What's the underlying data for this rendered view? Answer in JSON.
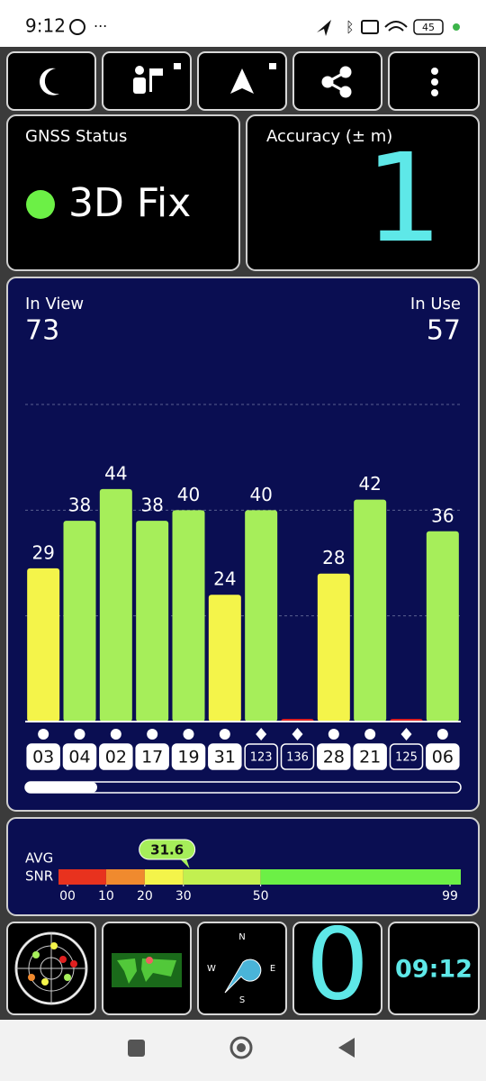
{
  "status_bar": {
    "time": "9:12",
    "battery": "45"
  },
  "gnss_status": {
    "title": "GNSS Status",
    "fix": "3D Fix"
  },
  "accuracy": {
    "title": "Accuracy (± m)",
    "value": "1"
  },
  "satellites": {
    "in_view_label": "In View",
    "in_view": "73",
    "in_use_label": "In Use",
    "in_use": "57",
    "sat_bars": {
      "ids": [
        "03",
        "04",
        "02",
        "17",
        "19",
        "31",
        "123",
        "136",
        "28",
        "21",
        "125",
        "06"
      ],
      "values": [
        29,
        38,
        44,
        38,
        40,
        24,
        40,
        0,
        28,
        42,
        0,
        36
      ],
      "value_labels": [
        "29",
        "38",
        "44",
        "38",
        "40",
        "24",
        "40",
        null,
        "28",
        "42",
        null,
        "36"
      ],
      "colors": [
        "#f4f44a",
        "#a6ee5a",
        "#a6ee5a",
        "#a6ee5a",
        "#a6ee5a",
        "#f4f44a",
        "#a6ee5a",
        "#e02020",
        "#f4f44a",
        "#a6ee5a",
        "#e02020",
        "#a6ee5a"
      ],
      "markers": [
        "circle",
        "circle",
        "circle",
        "circle",
        "circle",
        "circle",
        "diamond",
        "diamond",
        "circle",
        "circle",
        "diamond",
        "circle"
      ],
      "ylim": [
        0,
        60
      ],
      "gridlines": [
        20,
        40,
        60
      ]
    }
  },
  "snr": {
    "avg_label": "AVG",
    "snr_label": "SNR",
    "avg": 31.6,
    "ticks": [
      {
        "value": 0,
        "label": "00"
      },
      10,
      20,
      30,
      50,
      99
    ],
    "segment_colors": [
      "#e8321e",
      "#f08a2e",
      "#f4f44a",
      "#c2f050",
      "#6cf046"
    ]
  },
  "tiles": {
    "compass": [
      "N",
      "E",
      "S",
      "W"
    ],
    "count": "0",
    "clock": "09:12"
  }
}
